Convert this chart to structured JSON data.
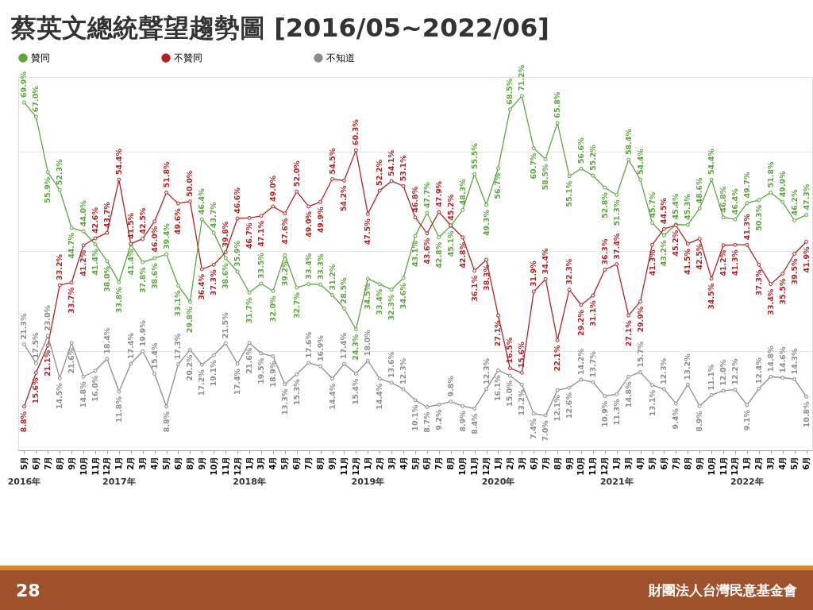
{
  "chart_data": {
    "type": "line",
    "title": "蔡英文總統聲望趨勢圖 [2016/05~2022/06]",
    "categories": [
      "5月",
      "6月",
      "7月",
      "8月",
      "9月",
      "10月",
      "11月",
      "12月",
      "1月",
      "2月",
      "3月",
      "4月",
      "5月",
      "6月",
      "8月",
      "9月",
      "10月",
      "11月",
      "12月",
      "1月",
      "3月",
      "4月",
      "5月",
      "6月",
      "7月",
      "8月",
      "9月",
      "11月",
      "12月",
      "1月",
      "2月",
      "3月",
      "4月",
      "5月",
      "6月",
      "7月",
      "8月",
      "10月",
      "11月",
      "12月",
      "1月",
      "2月",
      "3月",
      "6月",
      "7月",
      "8月",
      "9月",
      "10月",
      "11月",
      "12月",
      "1月",
      "3月",
      "4月",
      "5月",
      "6月",
      "7月",
      "8月",
      "9月",
      "10月",
      "11月",
      "12月",
      "1月",
      "2月",
      "3月",
      "4月",
      "5月",
      "6月"
    ],
    "series": [
      {
        "name": "贊同",
        "color": "#5ba63c",
        "values": [
          69.9,
          67.0,
          55.9,
          52.3,
          44.7,
          44.0,
          41.4,
          38.0,
          33.8,
          41.4,
          37.8,
          38.6,
          39.4,
          33.1,
          29.8,
          46.4,
          43.7,
          38.6,
          35.9,
          31.7,
          33.5,
          32.0,
          39.2,
          32.7,
          33.4,
          33.3,
          31.2,
          28.5,
          24.3,
          34.5,
          33.4,
          32.3,
          34.6,
          43.1,
          47.7,
          42.8,
          45.1,
          48.3,
          55.5,
          49.3,
          56.7,
          68.5,
          71.2,
          60.7,
          58.5,
          65.8,
          55.1,
          56.6,
          55.2,
          52.8,
          51.3,
          58.4,
          54.4,
          45.7,
          43.2,
          45.4,
          45.3,
          48.6,
          54.4,
          46.8,
          46.4,
          49.7,
          50.3,
          51.8,
          49.9,
          46.2,
          47.3
        ],
        "value_labels": [
          "69.9%",
          "67.0%",
          "55.9%",
          "52.3%",
          "44.7%",
          "44.0%",
          "41.4%",
          "38.0%",
          "33.8%",
          "41.4%",
          "37.8%",
          "38.6%",
          "39.4%",
          "33.1%",
          "29.8%",
          "46.4%",
          "43.7%",
          "38.6%",
          "35.9%",
          "31.7%",
          "33.5%",
          "32.0%",
          "39.2%",
          "32.7%",
          "33.4%",
          "33.3%",
          "31.2%",
          "28.5%",
          "24.3%",
          "34.5%",
          "33.4%",
          "32.3%",
          "34.6%",
          "43.1%",
          "47.7%",
          "42.8%",
          "45.1%",
          "48.3%",
          "55.5%",
          "49.3%",
          "56.7%",
          "68.5%",
          "71.2%",
          "60.7%",
          "58.5%",
          "65.8%",
          "55.1%",
          "56.6%",
          "55.2%",
          "52.8%",
          "51.3%",
          "58.4%",
          "54.4%",
          "45.7%",
          "43.2%",
          "45.4%",
          "45.3%",
          "48.6%",
          "54.4%",
          "46.8%",
          "46.4%",
          "49.7%",
          "50.3%",
          "51.8%",
          "49.9%",
          "46.2%",
          "47.3%"
        ]
      },
      {
        "name": "不贊同",
        "color": "#b22222",
        "values": [
          8.8,
          15.6,
          21.1,
          33.2,
          33.7,
          41.2,
          42.6,
          43.7,
          54.4,
          41.5,
          42.5,
          46.0,
          51.8,
          49.6,
          50.0,
          36.4,
          37.3,
          39.8,
          46.6,
          46.7,
          47.1,
          49.0,
          47.6,
          52.0,
          49.0,
          49.9,
          54.5,
          54.2,
          60.3,
          47.5,
          52.2,
          54.1,
          53.1,
          46.8,
          43.6,
          47.9,
          45.2,
          42.8,
          36.1,
          38.3,
          27.1,
          16.5,
          15.6,
          31.9,
          34.4,
          22.1,
          32.3,
          29.2,
          31.1,
          36.3,
          37.4,
          27.1,
          29.9,
          41.3,
          44.5,
          45.2,
          41.5,
          42.5,
          34.5,
          41.2,
          41.3,
          41.3,
          37.3,
          33.4,
          35.5,
          39.5,
          41.9
        ],
        "value_labels": [
          "8.8%",
          "15.6%",
          "21.1%",
          "33.2%",
          "33.7%",
          "41.2%",
          "42.6%",
          "43.7%",
          "54.4%",
          "41.5%",
          "42.5%",
          "46.0%",
          "51.8%",
          "49.6%",
          "50.0%",
          "36.4%",
          "37.3%",
          "39.8%",
          "46.6%",
          "46.7%",
          "47.1%",
          "49.0%",
          "47.6%",
          "52.0%",
          "49.0%",
          "49.9%",
          "54.5%",
          "54.2%",
          "60.3%",
          "47.5%",
          "52.2%",
          "54.1%",
          "53.1%",
          "46.8%",
          "43.6%",
          "47.9%",
          "45.2%",
          "42.8%",
          "36.1%",
          "38.3%",
          "27.1%",
          "16.5%",
          "15.6%",
          "31.9%",
          "34.4%",
          "22.1%",
          "32.3%",
          "29.2%",
          "31.1%",
          "36.3%",
          "37.4%",
          "27.1%",
          "29.9%",
          "41.3%",
          "44.5%",
          "45.2%",
          "41.5%",
          "42.5%",
          "34.5%",
          "41.2%",
          "41.3%",
          "41.3%",
          "37.3%",
          "33.4%",
          "35.5%",
          "39.5%",
          "41.9%"
        ]
      },
      {
        "name": "不知道",
        "color": "#8c8c8c",
        "values": [
          21.3,
          17.5,
          23.0,
          14.5,
          21.6,
          14.8,
          16.0,
          18.4,
          11.8,
          17.4,
          19.9,
          15.4,
          8.8,
          17.3,
          20.2,
          17.2,
          19.1,
          21.5,
          17.4,
          21.6,
          19.5,
          18.9,
          13.3,
          15.3,
          17.6,
          16.9,
          14.4,
          17.4,
          15.4,
          18.0,
          14.4,
          13.6,
          12.3,
          10.1,
          8.7,
          9.2,
          9.8,
          8.9,
          8.4,
          12.3,
          16.1,
          15.0,
          13.2,
          7.4,
          7.0,
          12.1,
          12.6,
          14.2,
          13.7,
          10.9,
          11.3,
          14.8,
          15.7,
          13.1,
          12.3,
          9.4,
          13.2,
          8.9,
          11.1,
          12.0,
          12.2,
          9.1,
          12.4,
          14.8,
          14.6,
          14.3,
          10.8
        ],
        "value_labels": [
          "21.3%",
          "17.5%",
          "23.0%",
          "14.5%",
          "21.6%",
          "14.8%",
          "16.0%",
          "18.4%",
          "11.8%",
          "17.4%",
          "19.9%",
          "15.4%",
          "8.8%",
          "17.3%",
          "20.2%",
          "17.2%",
          "19.1%",
          "21.5%",
          "17.4%",
          "21.6%",
          "19.5%",
          "18.9%",
          "13.3%",
          "15.3%",
          "17.6%",
          "16.9%",
          "14.4%",
          "17.4%",
          "15.4%",
          "18.0%",
          "14.4%",
          "13.6%",
          "12.3%",
          "10.1%",
          "8.7%",
          "9.2%",
          "9.8%",
          "8.9%",
          "8.4%",
          "12.3%",
          "16.1%",
          "15.0%",
          "13.2%",
          "7.4%",
          "7.0%",
          "12.1%",
          "12.6%",
          "14.2%",
          "13.7%",
          "10.9%",
          "11.3%",
          "14.8%",
          "15.7%",
          "13.1%",
          "12.3%",
          "9.4%",
          "13.2%",
          "8.9%",
          "11.1%",
          "12.0%",
          "12.2%",
          "9.1%",
          "12.4%",
          "14.8%",
          "14.6%",
          "14.3%",
          "10.8%"
        ]
      }
    ],
    "ylim": [
      0,
      75
    ],
    "yticks": [
      {
        "value": 0,
        "label": null
      },
      {
        "value": 20,
        "label": null
      },
      {
        "value": 40,
        "label": null
      },
      {
        "value": 60,
        "label": null
      }
    ],
    "tick_labels": "x",
    "grid": "y",
    "legend": "top",
    "marker": "circle",
    "line_style": "solid",
    "annotations": [
      "2016年",
      "2017年",
      "2018年",
      "2019年",
      "2020年",
      "2021年",
      "2022年",
      "28",
      "財團法人台灣民意基金會"
    ]
  }
}
